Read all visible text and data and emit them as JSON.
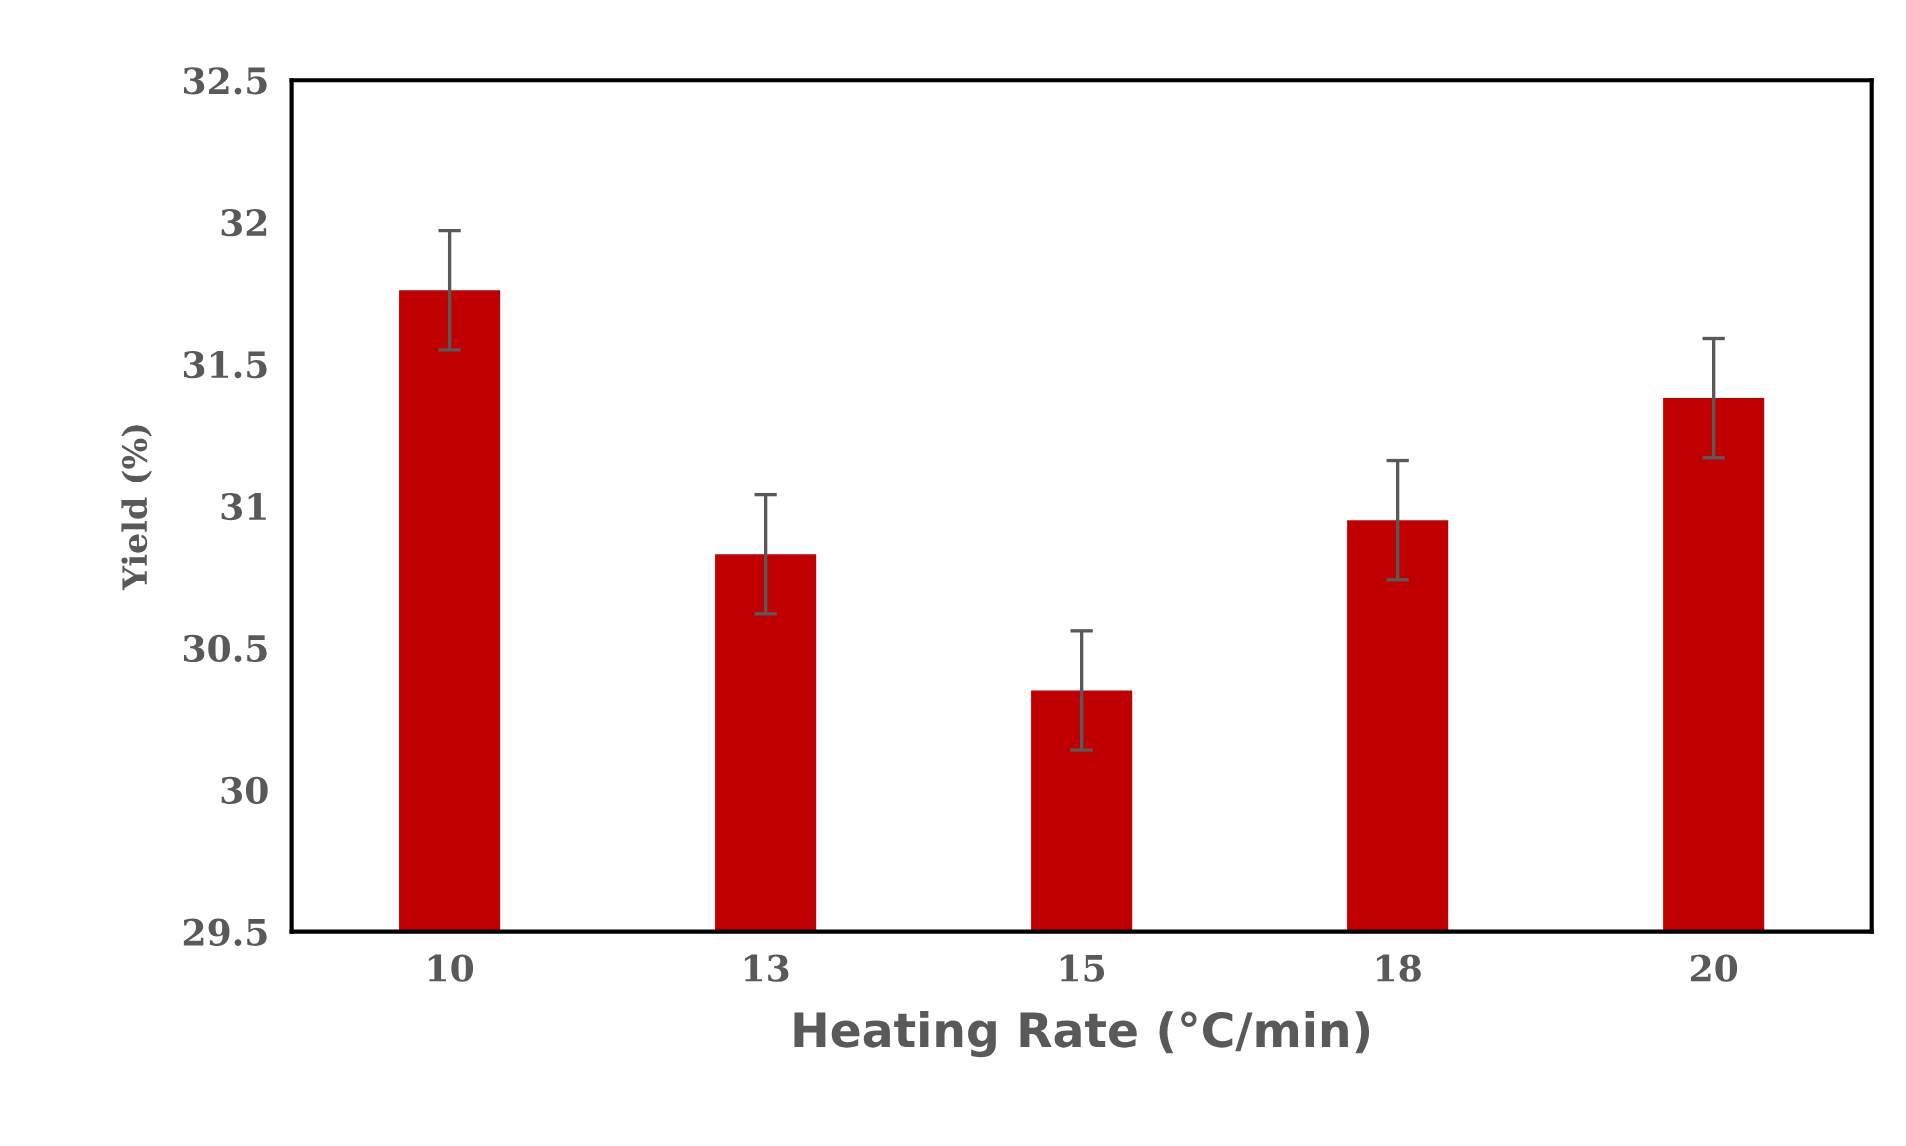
{
  "chart_data": {
    "type": "bar",
    "xlabel": "Heating Rate (°C/min)",
    "ylabel": "Yield (%)",
    "categories": [
      "10",
      "13",
      "15",
      "18",
      "20"
    ],
    "values": [
      31.76,
      30.83,
      30.35,
      30.95,
      31.38
    ],
    "errors": [
      0.21,
      0.21,
      0.21,
      0.21,
      0.21
    ],
    "color": "#c00000",
    "ylim": [
      29.5,
      32.5
    ],
    "yticks": [
      29.5,
      30,
      30.5,
      31,
      31.5,
      32,
      32.5
    ],
    "grid": false,
    "legend": false
  }
}
